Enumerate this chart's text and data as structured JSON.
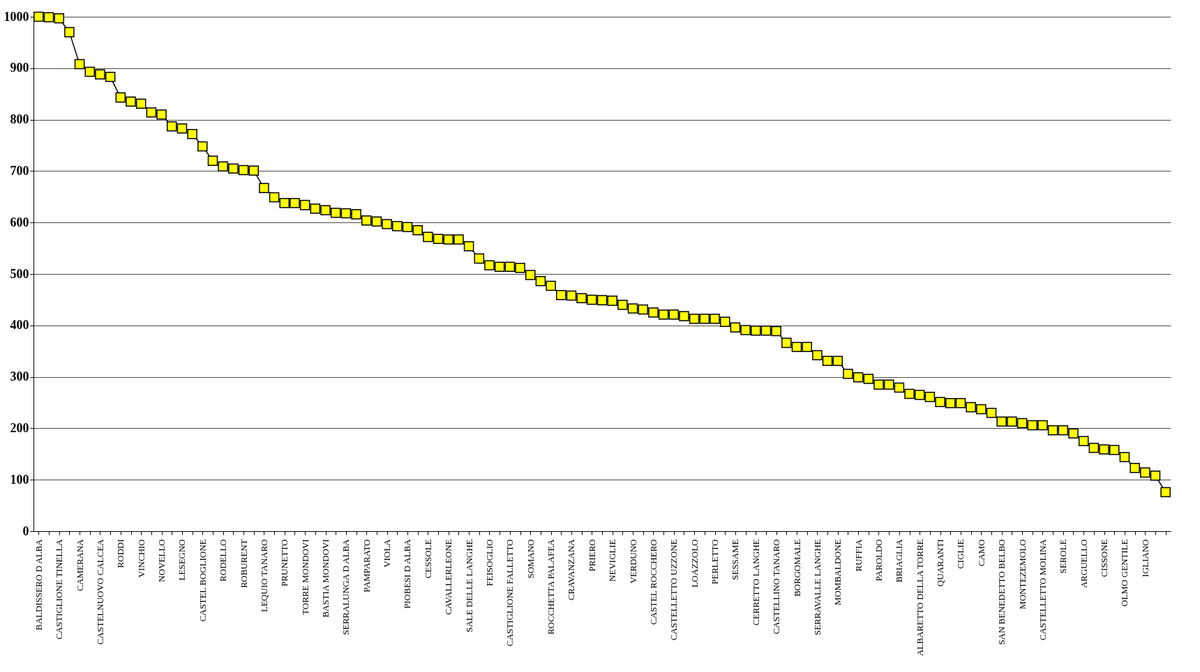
{
  "chart_data": {
    "type": "line",
    "categories": [
      "BALDISSERO D ALBA",
      null,
      "CASTIGLIONE TINELLA",
      null,
      "CAMERANA",
      null,
      "CASTELNUOVO CALCEA",
      null,
      "RODDI",
      null,
      "VINCHIO",
      null,
      "NOVELLO",
      null,
      "LESEGNO",
      null,
      "CASTEL BOGLIONE",
      null,
      "RODELLO",
      null,
      "ROBURENT",
      null,
      "LEQUIO TANARO",
      null,
      "PRUNETTO",
      null,
      "TORRE MONDOVI",
      null,
      "BASTIA MONDOVI",
      null,
      "SERRALUNGA D ALBA",
      null,
      "PAMPARATO",
      null,
      "VIOLA",
      null,
      "PIOBESI D ALBA",
      null,
      "CESSOLE",
      null,
      "CAVALLERLEONE",
      null,
      "SALE DELLE LANGHE",
      null,
      "FEISOGLIO",
      null,
      "CASTIGLIONE FALLETTO",
      null,
      "SOMANO",
      null,
      "ROCCHETTA PALAFEA",
      null,
      "CRAVANZANA",
      null,
      "PRIERO",
      null,
      "NEVIGLIE",
      null,
      "VERDUNO",
      null,
      "CASTEL ROCCHERO",
      null,
      "CASTELLETTO UZZONE",
      null,
      "LOAZZOLO",
      null,
      "PERLETTO",
      null,
      "SESSAME",
      null,
      "CERRETTO LANGHE",
      null,
      "CASTELLINO TANARO",
      null,
      "BORGOMALE",
      null,
      "SERRAVALLE LANGHE",
      null,
      "MOMBALDONE",
      null,
      "RUFFIA",
      null,
      "PAROLDO",
      null,
      "BRIAGLIA",
      null,
      "ALBARETTO DELLA TORRE",
      null,
      "QUARANTI",
      null,
      "CIGLIE",
      null,
      "CAMO",
      null,
      "SAN BENEDETTO BELBO",
      null,
      "MONTEZEMOLO",
      null,
      "CASTELLETTO MOLINA",
      null,
      "SEROLE",
      null,
      "ARGUELLO",
      null,
      "CISSONE",
      null,
      "OLMO GENTILE",
      null,
      "IGLIANO",
      null,
      null
    ],
    "series": [
      {
        "color": "#ffff00",
        "values": [
          1000,
          999,
          997,
          970,
          908,
          893,
          888,
          883,
          843,
          835,
          831,
          814,
          810,
          787,
          783,
          772,
          748,
          720,
          709,
          705,
          702,
          701,
          667,
          649,
          638,
          638,
          634,
          627,
          624,
          619,
          618,
          616,
          604,
          602,
          597,
          593,
          591,
          585,
          572,
          568,
          567,
          567,
          554,
          530,
          517,
          514,
          514,
          512,
          498,
          486,
          477,
          459,
          458,
          453,
          450,
          449,
          448,
          440,
          433,
          431,
          425,
          421,
          421,
          418,
          413,
          413,
          413,
          407,
          396,
          391,
          390,
          390,
          389,
          366,
          358,
          358,
          342,
          331,
          331,
          306,
          299,
          296,
          285,
          285,
          279,
          267,
          265,
          261,
          251,
          249,
          249,
          241,
          237,
          230,
          213,
          213,
          210,
          206,
          206,
          196,
          196,
          190,
          175,
          162,
          159,
          158,
          144,
          123,
          114,
          108,
          76
        ]
      }
    ],
    "ylim": [
      0,
      1000
    ],
    "yticks": [
      0,
      100,
      200,
      300,
      400,
      500,
      600,
      700,
      800,
      900,
      1000
    ],
    "grid": "y",
    "marker": "square",
    "line_style": "solid"
  }
}
